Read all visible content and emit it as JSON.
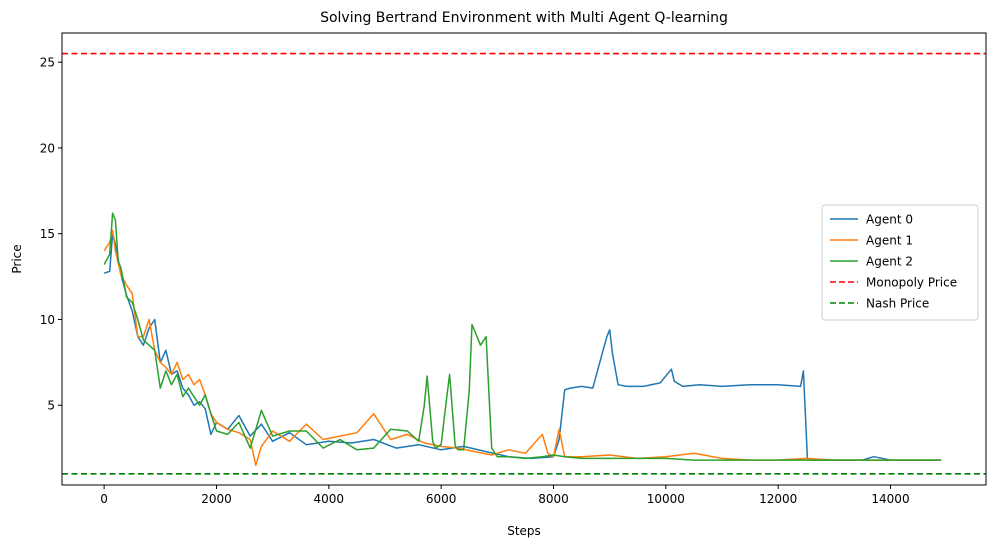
{
  "chart_data": {
    "type": "line",
    "title": "Solving Bertrand Environment with Multi Agent Q-learning",
    "xlabel": "Steps",
    "ylabel": "Price",
    "xlim": [
      -750,
      15700
    ],
    "ylim": [
      0.35,
      26.7
    ],
    "xticks": [
      0,
      2000,
      4000,
      6000,
      8000,
      10000,
      12000,
      14000
    ],
    "yticks": [
      5,
      10,
      15,
      20,
      25
    ],
    "grid": false,
    "legend_position": "center-right",
    "series": [
      {
        "name": "Agent 0",
        "color": "#1f77b4",
        "style": "solid",
        "x": [
          0,
          100,
          150,
          200,
          300,
          400,
          500,
          600,
          700,
          800,
          900,
          1000,
          1100,
          1200,
          1300,
          1400,
          1500,
          1600,
          1700,
          1800,
          1900,
          2000,
          2200,
          2400,
          2600,
          2800,
          3000,
          3300,
          3600,
          4000,
          4400,
          4800,
          5200,
          5600,
          6000,
          6400,
          6800,
          7200,
          7600,
          8000,
          8100,
          8200,
          8300,
          8500,
          8700,
          8850,
          8950,
          9000,
          9050,
          9150,
          9300,
          9600,
          9900,
          10100,
          10150,
          10300,
          10600,
          11000,
          11500,
          12000,
          12400,
          12450,
          12520,
          12600,
          13000,
          13500,
          13700,
          14000,
          14900
        ],
        "y": [
          12.7,
          12.8,
          15.0,
          14.4,
          12.6,
          11.4,
          10.5,
          9.0,
          8.5,
          9.5,
          10.0,
          7.5,
          8.2,
          6.8,
          7.0,
          6.0,
          5.6,
          5.0,
          5.2,
          4.8,
          3.3,
          4.0,
          3.6,
          4.4,
          3.2,
          3.9,
          2.9,
          3.4,
          2.7,
          2.9,
          2.8,
          3.0,
          2.5,
          2.7,
          2.4,
          2.6,
          2.3,
          2.0,
          1.9,
          2.0,
          3.0,
          5.9,
          6.0,
          6.1,
          6.0,
          7.8,
          9.0,
          9.4,
          8.0,
          6.2,
          6.1,
          6.1,
          6.3,
          7.1,
          6.4,
          6.1,
          6.2,
          6.1,
          6.2,
          6.2,
          6.1,
          7.0,
          1.9,
          1.8,
          1.8,
          1.8,
          2.0,
          1.8,
          1.8
        ]
      },
      {
        "name": "Agent 1",
        "color": "#ff7f0e",
        "style": "solid",
        "x": [
          0,
          100,
          150,
          200,
          300,
          400,
          500,
          600,
          700,
          800,
          900,
          1000,
          1100,
          1200,
          1300,
          1400,
          1500,
          1600,
          1700,
          1800,
          1900,
          2000,
          2200,
          2400,
          2600,
          2700,
          2800,
          3000,
          3300,
          3600,
          3900,
          4200,
          4500,
          4800,
          5100,
          5400,
          5700,
          6000,
          6300,
          6600,
          6900,
          7200,
          7500,
          7800,
          7900,
          8000,
          8100,
          8200,
          8500,
          9000,
          9500,
          10000,
          10500,
          11000,
          11500,
          12000,
          12500,
          13000,
          13500,
          14000,
          14900
        ],
        "y": [
          14.0,
          14.5,
          15.2,
          14.0,
          12.6,
          12.0,
          11.5,
          9.0,
          9.0,
          10.0,
          8.2,
          7.5,
          7.2,
          6.8,
          7.5,
          6.5,
          6.8,
          6.2,
          6.5,
          5.6,
          4.5,
          4.0,
          3.6,
          3.4,
          3.0,
          1.5,
          2.6,
          3.5,
          2.9,
          3.9,
          3.0,
          3.2,
          3.4,
          4.5,
          3.0,
          3.3,
          2.8,
          2.6,
          2.5,
          2.3,
          2.1,
          2.4,
          2.2,
          3.3,
          2.2,
          2.0,
          3.6,
          2.0,
          2.0,
          2.1,
          1.9,
          2.0,
          2.2,
          1.9,
          1.8,
          1.8,
          1.9,
          1.8,
          1.8,
          1.8,
          1.8
        ]
      },
      {
        "name": "Agent 2",
        "color": "#2ca02c",
        "style": "solid",
        "x": [
          0,
          100,
          150,
          200,
          250,
          300,
          400,
          500,
          600,
          700,
          800,
          900,
          1000,
          1100,
          1200,
          1300,
          1400,
          1500,
          1600,
          1700,
          1800,
          1900,
          2000,
          2200,
          2400,
          2600,
          2800,
          3000,
          3300,
          3600,
          3900,
          4200,
          4500,
          4800,
          5100,
          5400,
          5600,
          5700,
          5750,
          5850,
          5900,
          6000,
          6100,
          6150,
          6250,
          6300,
          6400,
          6500,
          6550,
          6600,
          6700,
          6800,
          6900,
          7000,
          7200,
          7500,
          7800,
          8000,
          8200,
          8500,
          9000,
          9500,
          10000,
          10500,
          11000,
          11500,
          12000,
          12500,
          13000,
          13500,
          14000,
          14900
        ],
        "y": [
          13.2,
          13.8,
          16.2,
          15.8,
          13.4,
          13.0,
          11.3,
          11.0,
          10.0,
          8.8,
          8.5,
          8.2,
          6.0,
          7.0,
          6.2,
          6.8,
          5.5,
          6.0,
          5.5,
          5.0,
          5.6,
          4.5,
          3.5,
          3.3,
          4.0,
          2.5,
          4.7,
          3.2,
          3.5,
          3.5,
          2.5,
          3.0,
          2.4,
          2.5,
          3.6,
          3.5,
          2.9,
          5.0,
          6.7,
          2.9,
          2.5,
          2.7,
          5.5,
          6.8,
          2.6,
          2.4,
          2.4,
          5.8,
          9.7,
          9.3,
          8.5,
          9.0,
          2.5,
          2.0,
          2.0,
          1.9,
          2.0,
          2.1,
          2.0,
          1.9,
          1.9,
          1.9,
          1.9,
          1.8,
          1.8,
          1.8,
          1.8,
          1.8,
          1.8,
          1.8,
          1.8,
          1.8
        ]
      },
      {
        "name": "Monopoly Price",
        "color": "#ff0000",
        "style": "dashed",
        "hline": 25.5
      },
      {
        "name": "Nash Price",
        "color": "#008000",
        "style": "dashed",
        "hline": 1.0
      }
    ]
  }
}
